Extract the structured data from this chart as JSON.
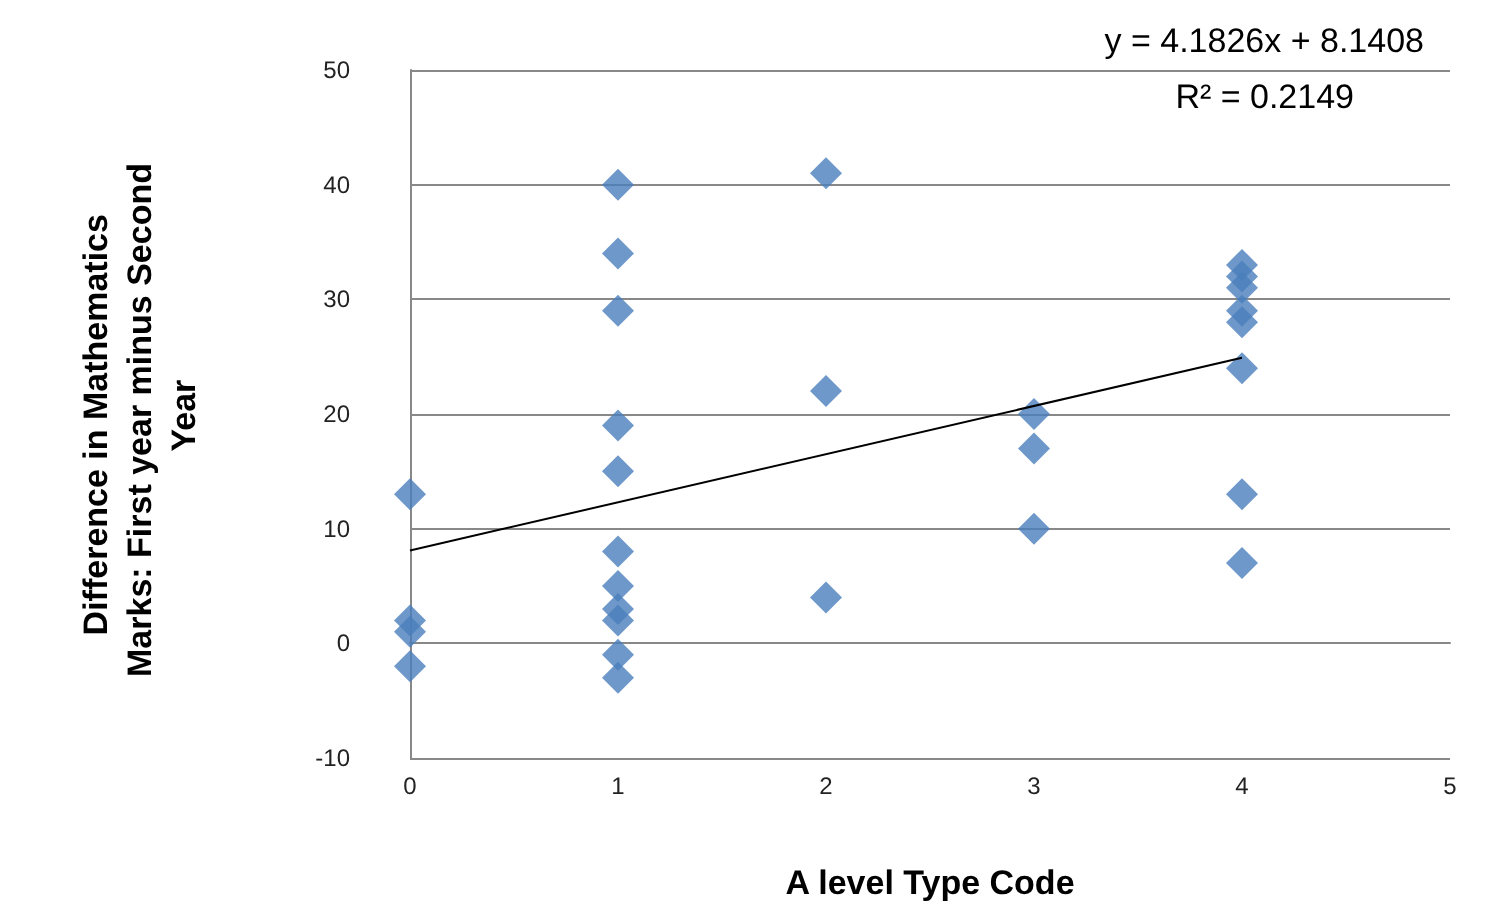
{
  "chart_data": {
    "type": "scatter",
    "xlabel": "A level Type Code",
    "ylabel": "Difference in Mathematics Marks: First year minus Second Year",
    "xlim": [
      0,
      5
    ],
    "xticks": [
      0,
      1,
      2,
      3,
      4,
      5
    ],
    "ylim": [
      -10,
      50
    ],
    "yticks": [
      -10,
      0,
      10,
      20,
      30,
      40,
      50
    ],
    "grid": "y",
    "marker": "diamond",
    "annotations": [
      "y = 4.1826x + 8.1408",
      "R² = 0.2149"
    ],
    "series": [
      {
        "color": "#4a7ebb",
        "x": [
          0,
          0,
          0,
          0,
          1,
          1,
          1,
          1,
          1,
          1,
          1,
          1,
          1,
          1,
          1,
          2,
          2,
          2,
          3,
          3,
          3,
          4,
          4,
          4,
          4,
          4,
          4,
          4,
          4
        ],
        "values": [
          13,
          2,
          1,
          -2,
          40,
          34,
          29,
          19,
          15,
          8,
          5,
          3,
          2,
          -1,
          -3,
          41,
          22,
          4,
          20,
          17,
          10,
          33,
          32,
          31,
          29,
          28,
          24,
          13,
          7
        ]
      },
      {
        "type": "line",
        "color": "#000000",
        "x": [
          0,
          4
        ],
        "values": [
          8.1,
          24.9
        ],
        "marker": "none"
      }
    ]
  }
}
